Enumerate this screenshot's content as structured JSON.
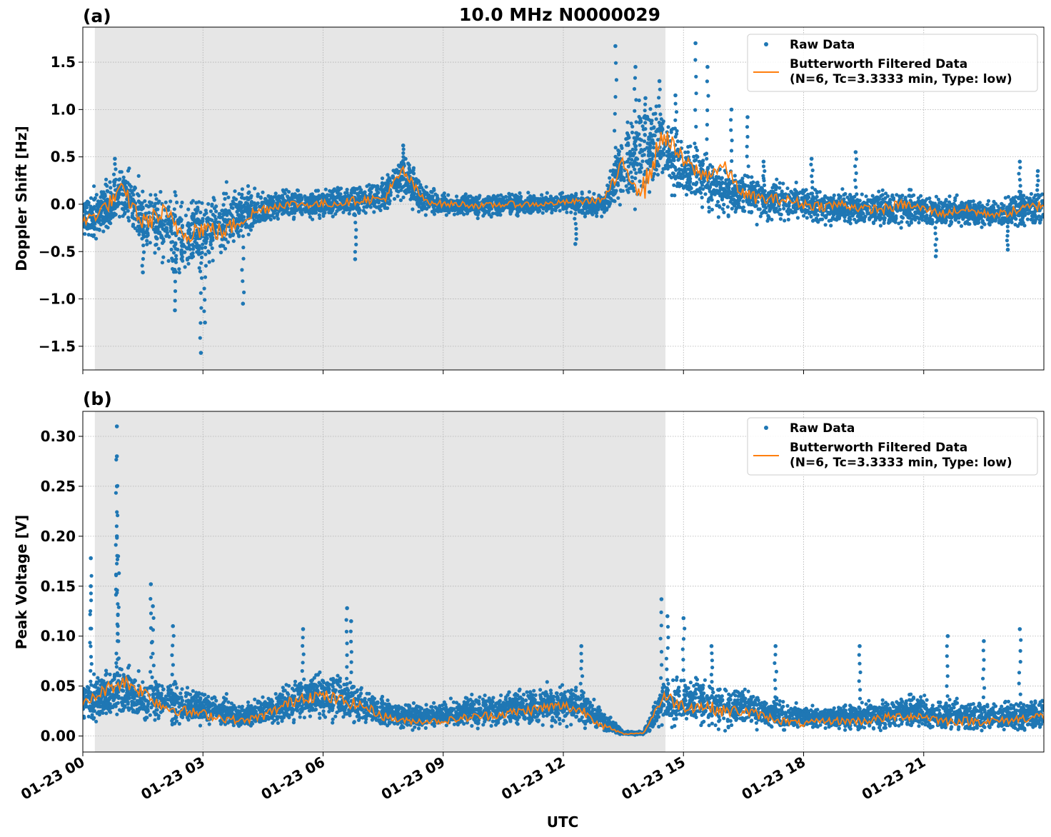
{
  "title": "10.0 MHz N0000029",
  "xlabel": "UTC",
  "x_tick_labels": [
    "01-23 00",
    "01-23 03",
    "01-23 06",
    "01-23 09",
    "01-23 12",
    "01-23 15",
    "01-23 18",
    "01-23 21"
  ],
  "colors": {
    "raw": "#1f77b4",
    "filtered": "#ff7f0e",
    "shade": "#e6e6e6",
    "grid": "#b0b0b0"
  },
  "legend": {
    "raw_label": "Raw Data",
    "filtered_line1": "Butterworth Filtered Data",
    "filtered_line2": "(N=6, Tc=3.3333 min, Type: low)",
    "placement": "top-right"
  },
  "chart_data": [
    {
      "type": "scatter",
      "panel_label": "(a)",
      "ylabel": "Doppler Shift [Hz]",
      "x_unit": "hours UTC since 01-23 00",
      "xlim": [
        0,
        24
      ],
      "ylim": [
        -1.75,
        1.87
      ],
      "y_ticks": [
        -1.5,
        -1.0,
        -0.5,
        0.0,
        0.5,
        1.0,
        1.5
      ],
      "y_tick_labels": [
        "−1.5",
        "−1.0",
        "−0.5",
        "0.0",
        "0.5",
        "1.0",
        "1.5"
      ],
      "grid": true,
      "shaded_region_hours": [
        0.3,
        14.55
      ],
      "series": [
        {
          "name": "Raw Data",
          "x": [
            0,
            0.5,
            1,
            1.5,
            2,
            2.5,
            3,
            3.5,
            4,
            4.5,
            5,
            5.5,
            6,
            6.5,
            7,
            7.5,
            8,
            8.5,
            9,
            9.5,
            10,
            10.5,
            11,
            11.5,
            12,
            12.5,
            13,
            13.5,
            14,
            14.5,
            15,
            15.5,
            16,
            16.5,
            17,
            17.5,
            18,
            18.5,
            19,
            19.5,
            20,
            20.5,
            21,
            21.5,
            22,
            22.5,
            23,
            23.5,
            24
          ],
          "center": [
            -0.15,
            -0.05,
            0.1,
            -0.15,
            -0.25,
            -0.35,
            -0.3,
            -0.2,
            -0.1,
            -0.05,
            0,
            0,
            0,
            0.02,
            0.05,
            0.1,
            0.3,
            0.05,
            0,
            0,
            -0.02,
            0,
            0,
            0,
            0.02,
            0,
            0,
            0.4,
            0.6,
            0.6,
            0.35,
            0.25,
            0.15,
            0.1,
            0.05,
            0.02,
            0,
            -0.02,
            -0.03,
            -0.05,
            -0.05,
            -0.03,
            -0.05,
            -0.08,
            -0.08,
            -0.1,
            -0.1,
            -0.05,
            -0.05
          ],
          "spread": [
            0.3,
            0.35,
            0.4,
            0.45,
            0.5,
            0.55,
            0.5,
            0.45,
            0.35,
            0.25,
            0.2,
            0.2,
            0.2,
            0.2,
            0.2,
            0.25,
            0.3,
            0.2,
            0.15,
            0.15,
            0.15,
            0.15,
            0.15,
            0.12,
            0.12,
            0.15,
            0.15,
            0.5,
            0.7,
            0.5,
            0.4,
            0.4,
            0.35,
            0.3,
            0.3,
            0.25,
            0.25,
            0.25,
            0.25,
            0.2,
            0.25,
            0.25,
            0.2,
            0.2,
            0.2,
            0.2,
            0.2,
            0.25,
            0.25
          ],
          "outliers": [
            [
              0.8,
              0.48
            ],
            [
              1.5,
              -0.72
            ],
            [
              2.3,
              -1.12
            ],
            [
              2.95,
              -1.57
            ],
            [
              3.05,
              -1.25
            ],
            [
              4.0,
              -1.05
            ],
            [
              6.8,
              -0.58
            ],
            [
              8.0,
              0.62
            ],
            [
              12.3,
              -0.42
            ],
            [
              13.3,
              1.67
            ],
            [
              13.8,
              1.45
            ],
            [
              14.05,
              1.12
            ],
            [
              14.4,
              1.3
            ],
            [
              14.8,
              1.15
            ],
            [
              15.3,
              1.7
            ],
            [
              15.6,
              1.45
            ],
            [
              16.2,
              1.0
            ],
            [
              16.6,
              0.92
            ],
            [
              17.0,
              0.45
            ],
            [
              18.2,
              0.48
            ],
            [
              19.3,
              0.55
            ],
            [
              21.3,
              -0.55
            ],
            [
              23.1,
              -0.48
            ],
            [
              23.4,
              0.45
            ],
            [
              23.85,
              0.35
            ]
          ]
        },
        {
          "name": "Butterworth Filtered Data (N=6, Tc=3.3333 min, Type: low)",
          "x": [
            0,
            0.5,
            1,
            1.5,
            2,
            2.5,
            3,
            3.5,
            4,
            4.5,
            5,
            5.5,
            6,
            6.5,
            7,
            7.5,
            8,
            8.5,
            9,
            9.5,
            10,
            10.5,
            11,
            11.5,
            12,
            12.5,
            13,
            13.5,
            14,
            14.5,
            15,
            15.5,
            16,
            16.5,
            17,
            17.5,
            18,
            18.5,
            19,
            19.5,
            20,
            20.5,
            21,
            21.5,
            22,
            22.5,
            23,
            23.5,
            24
          ],
          "y": [
            -0.2,
            -0.05,
            0.15,
            -0.2,
            -0.1,
            -0.3,
            -0.25,
            -0.3,
            -0.15,
            -0.05,
            0,
            0,
            0,
            0.02,
            0.05,
            0.05,
            0.35,
            0.05,
            0,
            0,
            -0.02,
            0,
            0,
            0,
            0.02,
            0.03,
            0.05,
            0.4,
            0.15,
            0.75,
            0.45,
            0.3,
            0.4,
            0.1,
            0.05,
            0.05,
            0,
            -0.02,
            0,
            -0.05,
            -0.05,
            0,
            -0.05,
            -0.1,
            -0.05,
            -0.1,
            -0.1,
            -0.05,
            0
          ]
        }
      ]
    },
    {
      "type": "scatter",
      "panel_label": "(b)",
      "ylabel": "Peak Voltage [V]",
      "x_unit": "hours UTC since 01-23 00",
      "xlim": [
        0,
        24
      ],
      "ylim": [
        -0.016,
        0.325
      ],
      "y_ticks": [
        0.0,
        0.05,
        0.1,
        0.15,
        0.2,
        0.25,
        0.3
      ],
      "y_tick_labels": [
        "0.00",
        "0.05",
        "0.10",
        "0.15",
        "0.20",
        "0.25",
        "0.30"
      ],
      "grid": true,
      "shaded_region_hours": [
        0.3,
        14.55
      ],
      "series": [
        {
          "name": "Raw Data",
          "x": [
            0,
            0.5,
            1,
            1.5,
            2,
            2.5,
            3,
            3.5,
            4,
            4.5,
            5,
            5.5,
            6,
            6.5,
            7,
            7.5,
            8,
            8.5,
            9,
            9.5,
            10,
            10.5,
            11,
            11.5,
            12,
            12.5,
            13,
            13.5,
            14,
            14.5,
            15,
            15.5,
            16,
            16.5,
            17,
            17.5,
            18,
            18.5,
            19,
            19.5,
            20,
            20.5,
            21,
            21.5,
            22,
            22.5,
            23,
            23.5,
            24
          ],
          "center": [
            0.035,
            0.04,
            0.045,
            0.035,
            0.035,
            0.03,
            0.028,
            0.025,
            0.018,
            0.025,
            0.03,
            0.04,
            0.04,
            0.035,
            0.03,
            0.025,
            0.02,
            0.02,
            0.022,
            0.025,
            0.025,
            0.028,
            0.03,
            0.03,
            0.03,
            0.03,
            0.015,
            0.003,
            0.003,
            0.035,
            0.035,
            0.035,
            0.03,
            0.03,
            0.025,
            0.02,
            0.018,
            0.02,
            0.02,
            0.02,
            0.02,
            0.025,
            0.025,
            0.02,
            0.02,
            0.02,
            0.02,
            0.02,
            0.022
          ],
          "spread": [
            0.025,
            0.03,
            0.035,
            0.03,
            0.03,
            0.025,
            0.022,
            0.02,
            0.015,
            0.02,
            0.025,
            0.03,
            0.03,
            0.03,
            0.022,
            0.02,
            0.015,
            0.015,
            0.015,
            0.018,
            0.02,
            0.02,
            0.022,
            0.025,
            0.025,
            0.025,
            0.015,
            0.002,
            0.002,
            0.03,
            0.03,
            0.03,
            0.028,
            0.025,
            0.02,
            0.018,
            0.015,
            0.015,
            0.018,
            0.018,
            0.02,
            0.02,
            0.022,
            0.02,
            0.02,
            0.02,
            0.018,
            0.02,
            0.022
          ],
          "outliers": [
            [
              0.2,
              0.178
            ],
            [
              0.2,
              0.15
            ],
            [
              0.85,
              0.31
            ],
            [
              0.85,
              0.28
            ],
            [
              0.85,
              0.25
            ],
            [
              0.85,
              0.2
            ],
            [
              0.88,
              0.18
            ],
            [
              1.7,
              0.152
            ],
            [
              1.75,
              0.13
            ],
            [
              2.25,
              0.11
            ],
            [
              5.5,
              0.107
            ],
            [
              6.6,
              0.128
            ],
            [
              6.7,
              0.115
            ],
            [
              12.45,
              0.09
            ],
            [
              14.45,
              0.137
            ],
            [
              14.6,
              0.12
            ],
            [
              15.0,
              0.118
            ],
            [
              15.7,
              0.09
            ],
            [
              17.3,
              0.09
            ],
            [
              19.4,
              0.09
            ],
            [
              21.6,
              0.1
            ],
            [
              22.5,
              0.095
            ],
            [
              23.4,
              0.107
            ]
          ]
        },
        {
          "name": "Butterworth Filtered Data (N=6, Tc=3.3333 min, Type: low)",
          "x": [
            0,
            0.5,
            1,
            1.5,
            2,
            2.5,
            3,
            3.5,
            4,
            4.5,
            5,
            5.5,
            6,
            6.5,
            7,
            7.5,
            8,
            8.5,
            9,
            9.5,
            10,
            10.5,
            11,
            11.5,
            12,
            12.5,
            13,
            13.5,
            14,
            14.5,
            15,
            15.5,
            16,
            16.5,
            17,
            17.5,
            18,
            18.5,
            19,
            19.5,
            20,
            20.5,
            21,
            21.5,
            22,
            22.5,
            23,
            23.5,
            24
          ],
          "y": [
            0.03,
            0.045,
            0.055,
            0.045,
            0.03,
            0.025,
            0.022,
            0.018,
            0.015,
            0.02,
            0.03,
            0.04,
            0.04,
            0.035,
            0.03,
            0.02,
            0.015,
            0.015,
            0.015,
            0.018,
            0.02,
            0.022,
            0.025,
            0.028,
            0.03,
            0.025,
            0.01,
            0.002,
            0.003,
            0.04,
            0.03,
            0.03,
            0.025,
            0.025,
            0.02,
            0.015,
            0.012,
            0.015,
            0.015,
            0.015,
            0.018,
            0.02,
            0.02,
            0.015,
            0.015,
            0.015,
            0.015,
            0.018,
            0.02
          ]
        }
      ]
    }
  ]
}
